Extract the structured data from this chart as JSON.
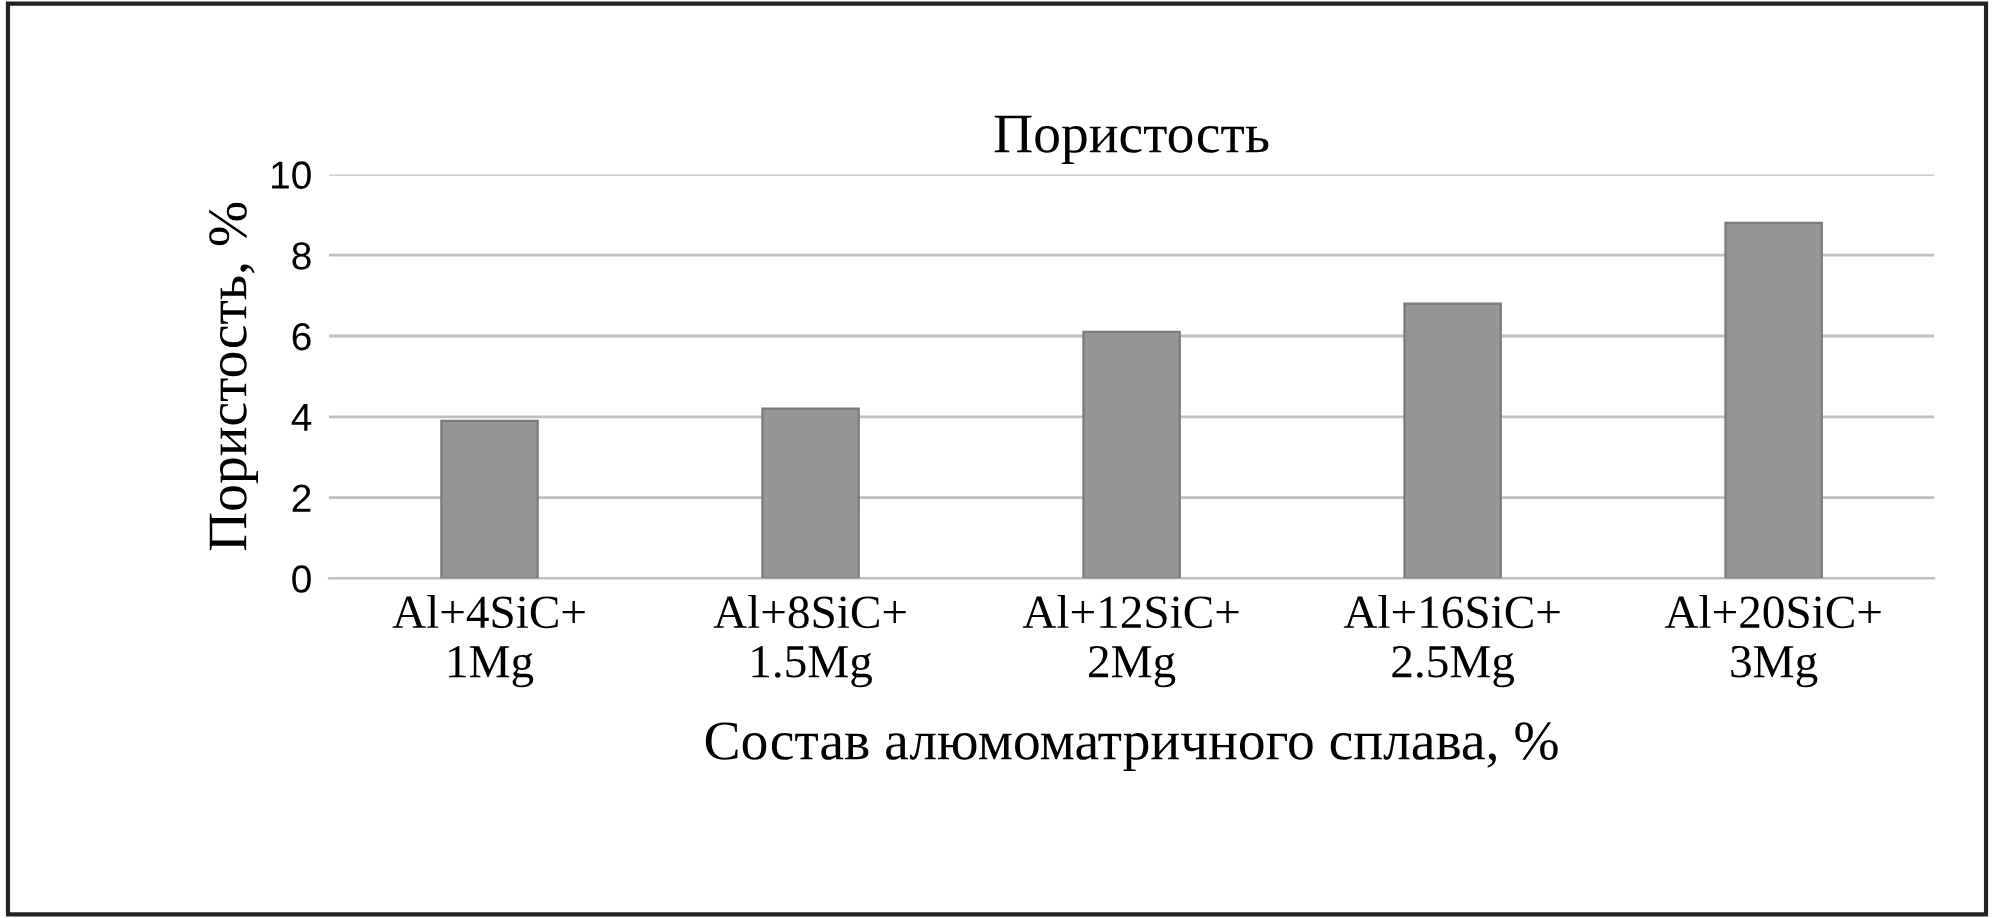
{
  "chart_data": {
    "type": "bar",
    "title": "Пористость",
    "xlabel": "Состав алюмоматричного сплава, %",
    "ylabel": "Пористость, %",
    "categories": [
      "Al+4SiC+\n1Mg",
      "Al+8SiC+\n1.5Mg",
      "Al+12SiC+\n2Mg",
      "Al+16SiC+\n2.5Mg",
      "Al+20SiC+\n3Mg"
    ],
    "values": [
      3.9,
      4.2,
      6.1,
      6.8,
      8.8
    ],
    "color": "#969696",
    "ylim": [
      0,
      10
    ],
    "yticks": [
      0,
      2,
      4,
      6,
      8,
      10
    ],
    "grid": "y"
  }
}
